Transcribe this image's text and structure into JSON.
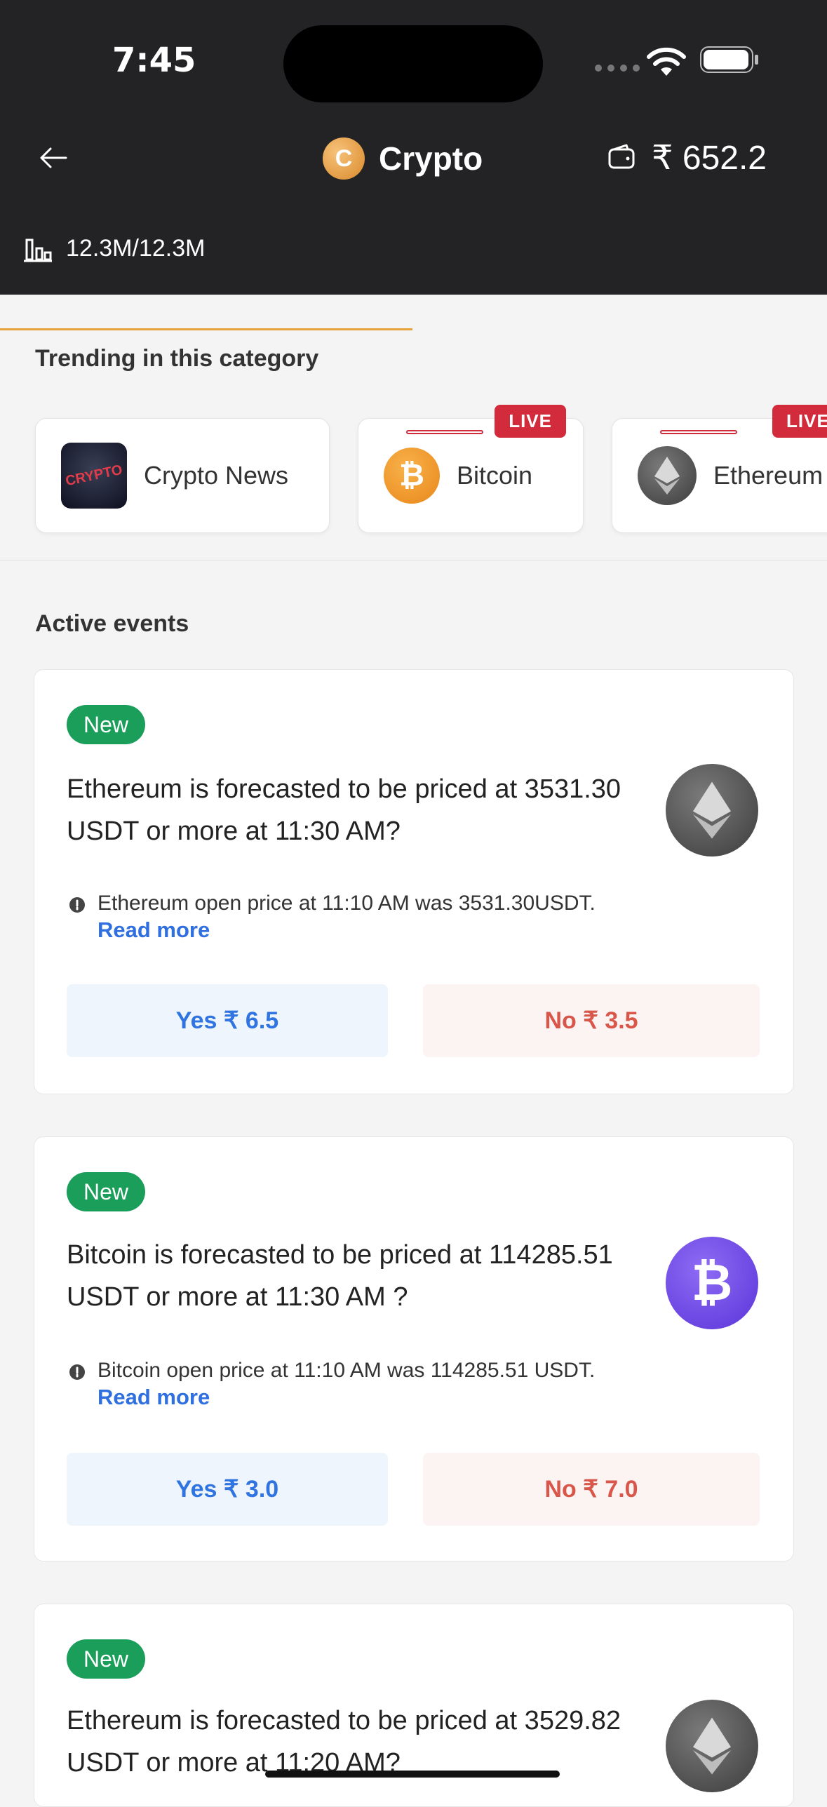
{
  "status_bar": {
    "time": "7:45"
  },
  "header": {
    "back_icon": "arrow-left-icon",
    "title": "Crypto",
    "coin_letter": "C",
    "wallet_amount": "₹ 652.2"
  },
  "volume": {
    "text": "12.3M/12.3M"
  },
  "trending": {
    "title": "Trending in this category",
    "items": [
      {
        "label": "Crypto News",
        "thumb_text": "CRYPTO",
        "live": ""
      },
      {
        "label": "Bitcoin",
        "live": "LIVE"
      },
      {
        "label": "Ethereum",
        "live": "LIVE"
      }
    ]
  },
  "active_events": {
    "title": "Active events",
    "events": [
      {
        "badge": "New",
        "question": "Ethereum is forecasted to be priced at 3531.30 USDT or more at 11:30 AM?",
        "info": "Ethereum open price at 11:10 AM was 3531.30USDT.",
        "read_more": "Read more",
        "yes": "Yes ₹ 6.5",
        "no": "No ₹ 3.5"
      },
      {
        "badge": "New",
        "question": "Bitcoin is forecasted to be priced at 114285.51 USDT or more at 11:30 AM ?",
        "info": "Bitcoin open price at 11:10 AM was 114285.51 USDT.",
        "read_more": "Read more",
        "yes": "Yes ₹ 3.0",
        "no": "No ₹ 7.0"
      },
      {
        "badge": "New",
        "question": "Ethereum is forecasted to be priced at 3529.82 USDT or more at 11:20 AM?"
      }
    ]
  },
  "colors": {
    "header_bg": "#232325",
    "yes_text": "#2f74e0",
    "no_text": "#d8574a",
    "new_badge": "#1a9e5a",
    "live_badge": "#d12b3c"
  }
}
